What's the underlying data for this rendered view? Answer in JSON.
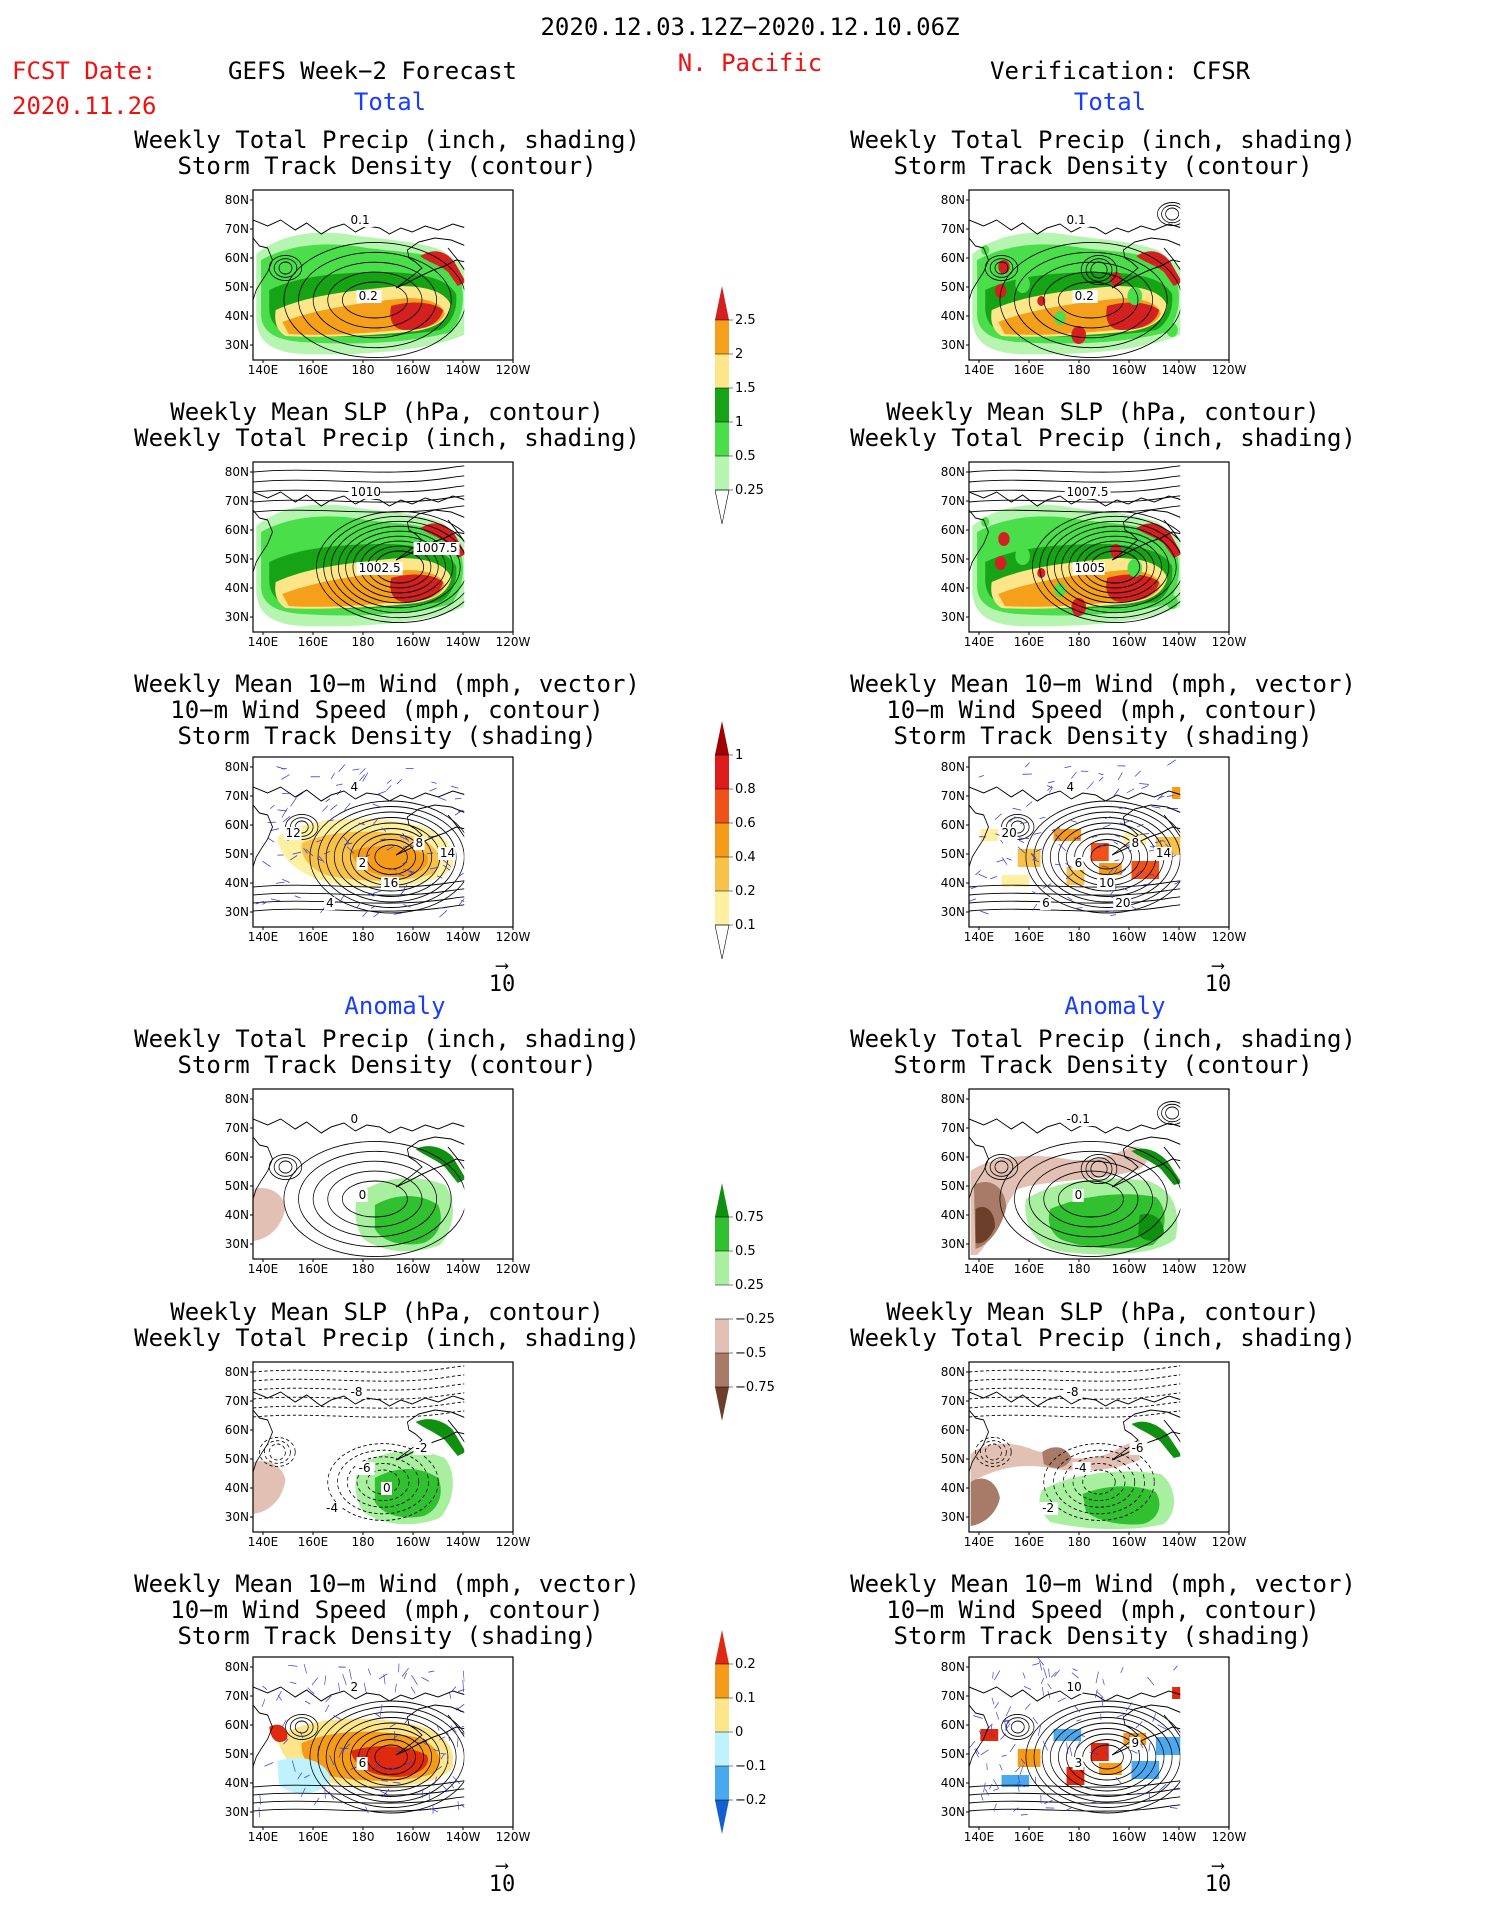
{
  "header": {
    "date_range": "2020.12.03.12Z−2020.12.10.06Z",
    "fcst_label": "FCST Date:",
    "fcst_date": "2020.11.26",
    "forecast_title": "GEFS Week−2 Forecast",
    "region": "N. Pacific",
    "verification_title": "Verification: CFSR"
  },
  "sections": {
    "total_label": "Total",
    "anomaly_label": "Anomaly"
  },
  "panels": {
    "precip_track": [
      "Weekly Total Precip (inch, shading)",
      "Storm Track Density (contour)"
    ],
    "slp_precip": [
      "Weekly Mean SLP (hPa, contour)",
      "Weekly Total Precip (inch, shading)"
    ],
    "wind_track": [
      "Weekly Mean 10−m Wind (mph, vector)",
      "10−m Wind Speed (mph, contour)",
      "Storm Track Density (shading)"
    ]
  },
  "axes": {
    "lat_ticks": [
      "80N",
      "70N",
      "60N",
      "50N",
      "40N",
      "30N"
    ],
    "lon_ticks": [
      "140E",
      "160E",
      "180",
      "160W",
      "140W",
      "120W"
    ]
  },
  "vector_ref": "10",
  "contour_labels": {
    "f_precip_total": [
      "0.1",
      "0.2"
    ],
    "v_precip_total": [
      "0.1",
      "0.2"
    ],
    "f_slp_total": [
      "1010",
      "1002.5",
      "1007.5"
    ],
    "v_slp_total": [
      "1007.5",
      "1005"
    ],
    "f_wind_total": [
      "4",
      "2",
      "8",
      "4",
      "16",
      "12",
      "14"
    ],
    "v_wind_total": [
      "4",
      "6",
      "8",
      "6",
      "10",
      "20",
      "14",
      "20"
    ],
    "f_precip_anom": [
      "0",
      "0"
    ],
    "v_precip_anom": [
      "-0.1",
      "0"
    ],
    "f_slp_anom": [
      "-8",
      "-6",
      "-2",
      "-4",
      "0"
    ],
    "v_slp_anom": [
      "-8",
      "-4",
      "-6",
      "-2"
    ],
    "f_wind_anom": [
      "2",
      "6"
    ],
    "v_wind_anom": [
      "10",
      "3",
      "9"
    ]
  },
  "colorbars": {
    "precip_total": {
      "labels": [
        "2.5",
        "2",
        "1.5",
        "1",
        "0.5",
        "0.25"
      ],
      "colors": [
        "#d32020",
        "#f5a01a",
        "#fde68a",
        "#16a316",
        "#4ade4a",
        "#b6f5b0",
        "#ffffff"
      ]
    },
    "track_total": {
      "labels": [
        "1",
        "0.8",
        "0.6",
        "0.4",
        "0.2",
        "0.1"
      ],
      "colors": [
        "#a00000",
        "#dc1c1c",
        "#f0501a",
        "#f59b1a",
        "#f8c24a",
        "#fdf0a0",
        "#ffffff"
      ]
    },
    "precip_anom": {
      "labels": [
        "0.75",
        "0.5",
        "0.25",
        "−0.25",
        "−0.5",
        "−0.75"
      ],
      "colors": [
        "#109010",
        "#30c030",
        "#a8f0a0",
        "#ffffff",
        "#e2c1b4",
        "#a87a68",
        "#6b3f2a"
      ]
    },
    "track_anom": {
      "labels": [
        "0.2",
        "0.1",
        "0",
        "−0.1",
        "−0.2"
      ],
      "colors": [
        "#e02a10",
        "#f59b1a",
        "#fde68a",
        "#bff2ff",
        "#4aa8ee",
        "#1060d0"
      ]
    }
  },
  "colors": {
    "title_red": "#ee1111",
    "section_blue": "#1a3cff"
  }
}
